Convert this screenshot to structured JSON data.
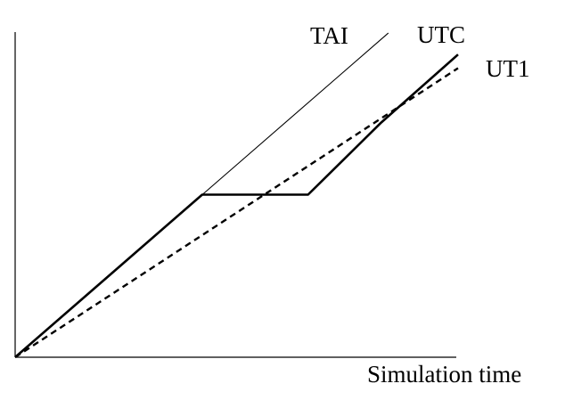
{
  "chart_data": {
    "type": "line",
    "title": "",
    "xlabel": "Simulation time",
    "ylabel": "",
    "xlim": [
      0,
      100
    ],
    "ylim": [
      0,
      100
    ],
    "grid": false,
    "legend": "none",
    "series": [
      {
        "name": "TAI",
        "style": "thin-solid",
        "points": [
          [
            0,
            0
          ],
          [
            84.6,
            99.7
          ]
        ]
      },
      {
        "name": "UTC",
        "style": "thick-solid",
        "points": [
          [
            0,
            0
          ],
          [
            42.4,
            50.0
          ],
          [
            66.4,
            50.0
          ],
          [
            83.0,
            72.2
          ],
          [
            100.4,
            93.1
          ]
        ]
      },
      {
        "name": "UT1",
        "style": "dashed",
        "points": [
          [
            0,
            0
          ],
          [
            100.4,
            88.9
          ]
        ]
      }
    ]
  }
}
